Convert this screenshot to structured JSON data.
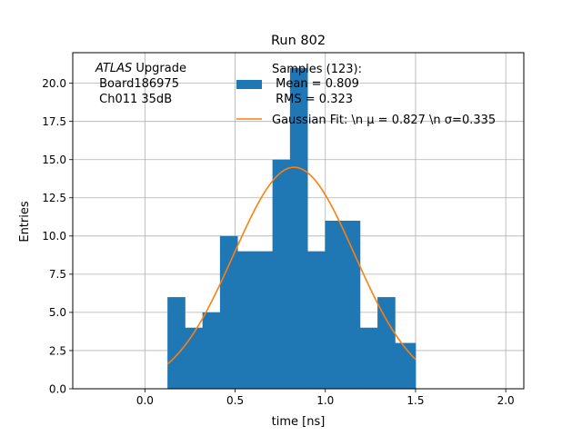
{
  "chart_data": {
    "type": "bar",
    "title": "Run 802",
    "xlabel": "time [ns]",
    "ylabel": "Entries",
    "xlim": [
      -0.4,
      2.1
    ],
    "ylim": [
      0,
      22
    ],
    "grid": true,
    "x_ticks": [
      0.0,
      0.5,
      1.0,
      1.5,
      2.0
    ],
    "x_tick_labels": [
      "0.0",
      "0.5",
      "1.0",
      "1.5",
      "2.0"
    ],
    "y_ticks": [
      0.0,
      2.5,
      5.0,
      7.5,
      10.0,
      12.5,
      15.0,
      17.5,
      20.0
    ],
    "y_tick_labels": [
      "0.0",
      "2.5",
      "5.0",
      "7.5",
      "10.0",
      "12.5",
      "15.0",
      "17.5",
      "20.0"
    ],
    "annotation": {
      "italic": "ATLAS",
      "rest": " Upgrade",
      "line2": " Board186975",
      "line3": " Ch011 35dB"
    },
    "histogram": {
      "bin_edges": [
        0.125,
        0.222,
        0.319,
        0.416,
        0.513,
        0.61,
        0.707,
        0.804,
        0.901,
        0.998,
        1.095,
        1.192,
        1.289,
        1.386,
        1.5
      ],
      "counts": [
        6,
        4,
        5,
        10,
        9,
        9,
        15,
        21,
        9,
        11,
        11,
        4,
        6,
        3
      ],
      "color": "#1f77b4",
      "legend": {
        "line1": "Samples (123):",
        "line2": " Mean = 0.809",
        "line3": " RMS = 0.323"
      }
    },
    "fit": {
      "model": "gaussian",
      "amplitude": 14.5,
      "mu": 0.827,
      "sigma": 0.335,
      "x_range": [
        0.125,
        1.5
      ],
      "color": "#ff7f0e",
      "legend": "Gaussian Fit: \\n μ = 0.827 \\n σ=0.335"
    },
    "legend_placement": "upper-center"
  }
}
